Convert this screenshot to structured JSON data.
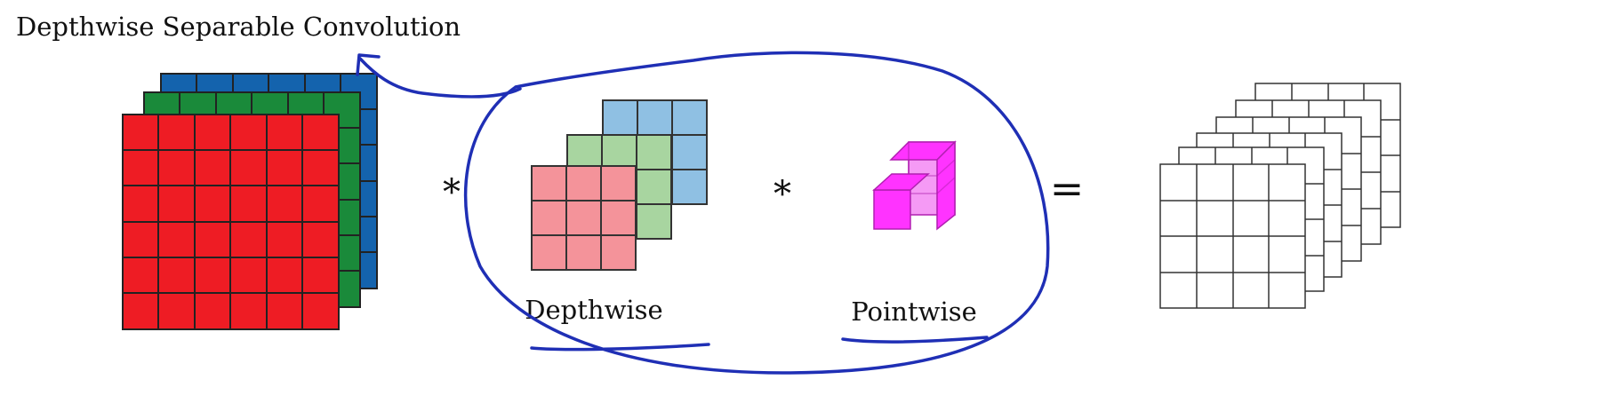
{
  "title": "Depthwise Separable Convolution",
  "operators": {
    "convolve_1": "*",
    "convolve_2": "*",
    "equals": "="
  },
  "labels": {
    "depthwise": "Depthwise",
    "pointwise": "Pointwise"
  },
  "colors": {
    "input_red": "#ee1c24",
    "input_green": "#1a8a3a",
    "input_blue": "#1463ad",
    "filter_red": "#f4939a",
    "filter_green": "#a8d5a0",
    "filter_blue": "#8fc0e3",
    "pointwise_magenta": "#ff33ff",
    "pointwise_light": "#f59af5",
    "annotation_ink": "#1f2fb5",
    "grid_line": "#222222"
  }
}
